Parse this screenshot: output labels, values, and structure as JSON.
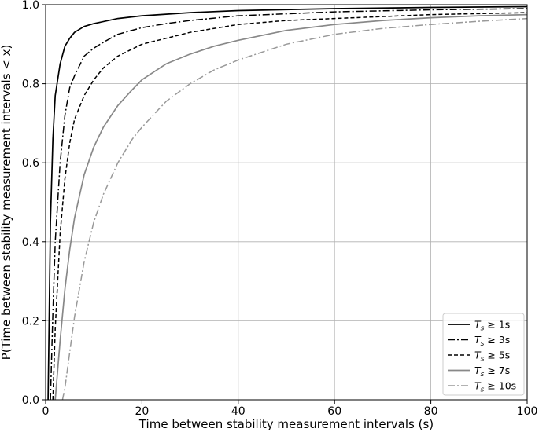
{
  "chart_data": {
    "type": "line",
    "xlabel": "Time between stability measurement intervals (s)",
    "ylabel": "P(Time between stability measurement intervals < x)",
    "xlim": [
      0,
      100
    ],
    "ylim": [
      0,
      1
    ],
    "xticks": [
      "0",
      "20",
      "40",
      "60",
      "80",
      "100"
    ],
    "yticks": [
      "0.0",
      "0.2",
      "0.4",
      "0.6",
      "0.8",
      "1.0"
    ],
    "grid": true,
    "legend_position": "bottom-right",
    "series": [
      {
        "name": "T_s ≥ 1s",
        "legend": {
          "var": "T",
          "sub": "s",
          "rest": " ≥ 1s"
        },
        "color": "#000000",
        "dash": "",
        "width": 1.7,
        "x": [
          0.5,
          1,
          1.5,
          2,
          3,
          4,
          5,
          6,
          8,
          10,
          15,
          20,
          30,
          40,
          60,
          80,
          100
        ],
        "y": [
          0.0,
          0.45,
          0.66,
          0.77,
          0.85,
          0.895,
          0.915,
          0.93,
          0.945,
          0.952,
          0.965,
          0.972,
          0.98,
          0.985,
          0.99,
          0.993,
          0.995
        ]
      },
      {
        "name": "T_s ≥ 3s",
        "legend": {
          "var": "T",
          "sub": "s",
          "rest": " ≥ 3s"
        },
        "color": "#000000",
        "dash": "9,3,2,3",
        "width": 1.5,
        "x": [
          1,
          1.5,
          2,
          3,
          4,
          5,
          6,
          8,
          10,
          12,
          15,
          20,
          25,
          30,
          40,
          60,
          80,
          100
        ],
        "y": [
          0.0,
          0.22,
          0.4,
          0.6,
          0.72,
          0.79,
          0.82,
          0.87,
          0.89,
          0.905,
          0.925,
          0.942,
          0.952,
          0.96,
          0.972,
          0.982,
          0.987,
          0.99
        ]
      },
      {
        "name": "T_s ≥ 5s",
        "legend": {
          "var": "T",
          "sub": "s",
          "rest": " ≥ 5s"
        },
        "color": "#000000",
        "dash": "5,3",
        "width": 1.5,
        "x": [
          1.5,
          2,
          3,
          4,
          5,
          6,
          8,
          10,
          12,
          15,
          20,
          25,
          30,
          40,
          50,
          60,
          80,
          100
        ],
        "y": [
          0.0,
          0.18,
          0.42,
          0.56,
          0.65,
          0.71,
          0.77,
          0.81,
          0.84,
          0.87,
          0.9,
          0.915,
          0.93,
          0.95,
          0.96,
          0.965,
          0.975,
          0.98
        ]
      },
      {
        "name": "T_s ≥ 7s",
        "legend": {
          "var": "T",
          "sub": "s",
          "rest": " ≥ 7s"
        },
        "color": "#888888",
        "dash": "",
        "width": 1.7,
        "x": [
          2,
          3,
          4,
          5,
          6,
          8,
          10,
          12,
          15,
          18,
          20,
          25,
          30,
          35,
          40,
          50,
          60,
          70,
          80,
          90,
          100
        ],
        "y": [
          0.0,
          0.15,
          0.28,
          0.38,
          0.46,
          0.57,
          0.64,
          0.69,
          0.745,
          0.785,
          0.81,
          0.85,
          0.875,
          0.895,
          0.91,
          0.935,
          0.95,
          0.96,
          0.967,
          0.972,
          0.975
        ]
      },
      {
        "name": "T_s ≥ 10s",
        "legend": {
          "var": "T",
          "sub": "s",
          "rest": " ≥ 10s"
        },
        "color": "#999999",
        "dash": "9,3,2,3",
        "width": 1.5,
        "x": [
          3.5,
          4,
          5,
          6,
          8,
          10,
          12,
          15,
          18,
          20,
          25,
          30,
          35,
          40,
          50,
          60,
          70,
          80,
          90,
          100
        ],
        "y": [
          0.0,
          0.03,
          0.12,
          0.21,
          0.35,
          0.45,
          0.52,
          0.6,
          0.66,
          0.69,
          0.755,
          0.8,
          0.835,
          0.86,
          0.9,
          0.925,
          0.94,
          0.95,
          0.958,
          0.965
        ]
      }
    ]
  }
}
